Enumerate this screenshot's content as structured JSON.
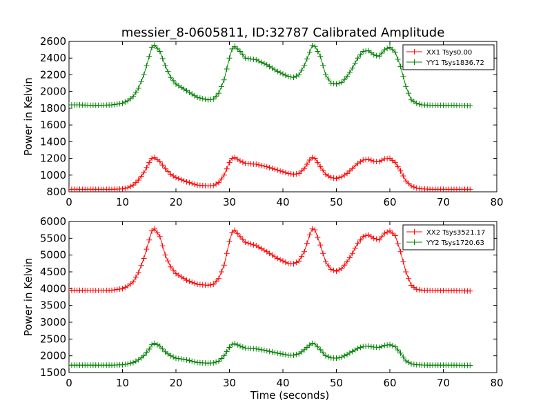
{
  "figure": {
    "title": "messier_8-0605811, ID:32787 Calibrated Amplitude"
  },
  "chart_data": [
    {
      "type": "line",
      "title": "messier_8-0605811, ID:32787 Calibrated Amplitude",
      "xlabel": "",
      "ylabel": "Power in Kelvin",
      "xlim": [
        0,
        80
      ],
      "ylim": [
        800,
        2600
      ],
      "xticks": [
        0,
        10,
        20,
        30,
        40,
        50,
        60,
        70,
        80
      ],
      "yticks": [
        800,
        1000,
        1200,
        1400,
        1600,
        1800,
        2000,
        2200,
        2400,
        2600
      ],
      "grid": false,
      "legend_position": "top-right",
      "marker": "+",
      "series": [
        {
          "name": "XX1 Tsys0.00",
          "color": "#ff0000",
          "x": [
            0,
            2,
            4,
            6,
            8,
            10,
            11,
            12,
            13,
            14,
            15,
            15.5,
            16,
            17,
            18,
            19,
            20,
            22,
            24,
            26,
            27,
            28,
            29,
            30,
            30.5,
            31,
            32,
            33,
            35,
            37,
            39,
            41,
            42,
            43,
            44,
            45,
            45.5,
            46,
            47,
            48,
            49,
            50,
            51,
            52,
            53,
            54,
            55,
            56,
            57,
            58,
            59,
            60,
            61,
            62,
            63,
            64,
            65,
            66,
            68,
            70,
            72,
            75
          ],
          "values": [
            830,
            830,
            830,
            830,
            830,
            835,
            850,
            880,
            940,
            1030,
            1150,
            1200,
            1210,
            1160,
            1080,
            1010,
            970,
            920,
            880,
            870,
            875,
            910,
            1000,
            1150,
            1200,
            1210,
            1170,
            1140,
            1130,
            1100,
            1060,
            1020,
            1010,
            1020,
            1080,
            1180,
            1210,
            1200,
            1100,
            1010,
            970,
            960,
            980,
            1020,
            1080,
            1140,
            1180,
            1190,
            1165,
            1160,
            1195,
            1200,
            1150,
            1050,
            930,
            870,
            845,
            835,
            830,
            830,
            830,
            830
          ]
        },
        {
          "name": "YY1 Tsys1836.72",
          "color": "#008000",
          "x": [
            0,
            2,
            4,
            6,
            8,
            10,
            11,
            12,
            13,
            14,
            15,
            15.5,
            16,
            17,
            18,
            19,
            20,
            22,
            24,
            26,
            27,
            28,
            29,
            30,
            30.5,
            31,
            32,
            33,
            35,
            37,
            39,
            41,
            42,
            43,
            44,
            45,
            45.5,
            46,
            47,
            48,
            49,
            50,
            51,
            52,
            53,
            54,
            55,
            56,
            57,
            58,
            59,
            60,
            61,
            62,
            63,
            64,
            65,
            66,
            68,
            70,
            72,
            75
          ],
          "values": [
            1840,
            1840,
            1835,
            1835,
            1840,
            1860,
            1890,
            1940,
            2040,
            2200,
            2420,
            2530,
            2555,
            2480,
            2310,
            2170,
            2090,
            2010,
            1930,
            1900,
            1910,
            1980,
            2140,
            2400,
            2510,
            2540,
            2480,
            2400,
            2380,
            2320,
            2240,
            2180,
            2170,
            2200,
            2310,
            2470,
            2550,
            2540,
            2420,
            2200,
            2100,
            2090,
            2110,
            2180,
            2280,
            2400,
            2480,
            2490,
            2440,
            2420,
            2500,
            2530,
            2470,
            2300,
            2060,
            1900,
            1860,
            1840,
            1835,
            1835,
            1835,
            1830
          ]
        }
      ]
    },
    {
      "type": "line",
      "title": "",
      "xlabel": "Time (seconds)",
      "ylabel": "Power in Kelvin",
      "xlim": [
        0,
        80
      ],
      "ylim": [
        1500,
        6000
      ],
      "xticks": [
        0,
        10,
        20,
        30,
        40,
        50,
        60,
        70,
        80
      ],
      "yticks": [
        1500,
        2000,
        2500,
        3000,
        3500,
        4000,
        4500,
        5000,
        5500,
        6000
      ],
      "grid": false,
      "legend_position": "top-right",
      "marker": "+",
      "series": [
        {
          "name": "XX2 Tsys3521.17",
          "color": "#ff0000",
          "x": [
            0,
            2,
            4,
            6,
            8,
            10,
            11,
            12,
            13,
            14,
            15,
            15.5,
            16,
            17,
            18,
            19,
            20,
            22,
            24,
            26,
            27,
            28,
            29,
            30,
            30.5,
            31,
            32,
            33,
            35,
            37,
            39,
            41,
            42,
            43,
            44,
            45,
            45.5,
            46,
            47,
            48,
            49,
            50,
            51,
            52,
            53,
            54,
            55,
            56,
            57,
            58,
            59,
            60,
            61,
            62,
            63,
            64,
            65,
            66,
            68,
            70,
            72,
            75
          ],
          "values": [
            3950,
            3950,
            3945,
            3945,
            3950,
            4000,
            4080,
            4200,
            4480,
            4900,
            5450,
            5720,
            5780,
            5550,
            5000,
            4650,
            4450,
            4250,
            4130,
            4100,
            4130,
            4300,
            4700,
            5400,
            5680,
            5740,
            5550,
            5380,
            5280,
            5100,
            4900,
            4750,
            4740,
            4820,
            5100,
            5600,
            5780,
            5750,
            5300,
            4800,
            4570,
            4520,
            4600,
            4800,
            5050,
            5350,
            5550,
            5600,
            5500,
            5450,
            5650,
            5720,
            5580,
            5100,
            4500,
            4100,
            3980,
            3950,
            3945,
            3940,
            3940,
            3930
          ]
        },
        {
          "name": "YY2 Tsys1720.63",
          "color": "#008000",
          "x": [
            0,
            2,
            4,
            6,
            8,
            10,
            11,
            12,
            13,
            14,
            15,
            15.5,
            16,
            17,
            18,
            19,
            20,
            22,
            24,
            26,
            27,
            28,
            29,
            30,
            30.5,
            31,
            32,
            33,
            35,
            37,
            39,
            41,
            42,
            43,
            44,
            45,
            45.5,
            46,
            47,
            48,
            49,
            50,
            51,
            52,
            53,
            54,
            55,
            56,
            57,
            58,
            59,
            60,
            61,
            62,
            63,
            64,
            65,
            66,
            68,
            70,
            72,
            75
          ],
          "values": [
            1720,
            1720,
            1720,
            1720,
            1720,
            1735,
            1760,
            1800,
            1880,
            2000,
            2200,
            2330,
            2370,
            2290,
            2120,
            2000,
            1930,
            1880,
            1800,
            1780,
            1790,
            1840,
            2000,
            2250,
            2340,
            2360,
            2290,
            2230,
            2210,
            2150,
            2080,
            2020,
            2020,
            2060,
            2180,
            2320,
            2370,
            2350,
            2180,
            2000,
            1940,
            1930,
            1960,
            2040,
            2130,
            2220,
            2280,
            2290,
            2260,
            2250,
            2310,
            2330,
            2270,
            2080,
            1850,
            1760,
            1735,
            1725,
            1720,
            1720,
            1720,
            1715
          ]
        }
      ]
    }
  ]
}
